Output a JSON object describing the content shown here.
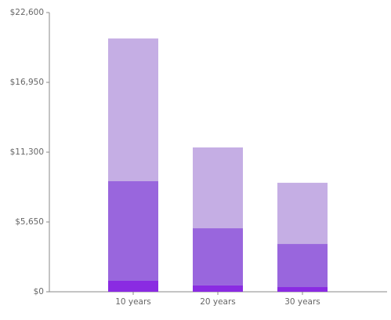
{
  "chart_data": {
    "type": "stacked-bar",
    "categories": [
      "10 years",
      "20 years",
      "30 years"
    ],
    "series": [
      {
        "color": "#8a2be2",
        "values": [
          890,
          510,
          380
        ]
      },
      {
        "color": "#9966dd",
        "values": [
          8060,
          4630,
          3490
        ]
      },
      {
        "color": "#c5aee4",
        "values": [
          11550,
          6540,
          4950
        ]
      }
    ],
    "ylim": [
      0,
      22600
    ],
    "yticks": [
      {
        "value": 0,
        "label": "$0"
      },
      {
        "value": 5650,
        "label": "$5,650"
      },
      {
        "value": 11300,
        "label": "$11,300"
      },
      {
        "value": 16950,
        "label": "$16,950"
      },
      {
        "value": 22600,
        "label": "$22,600"
      }
    ]
  }
}
